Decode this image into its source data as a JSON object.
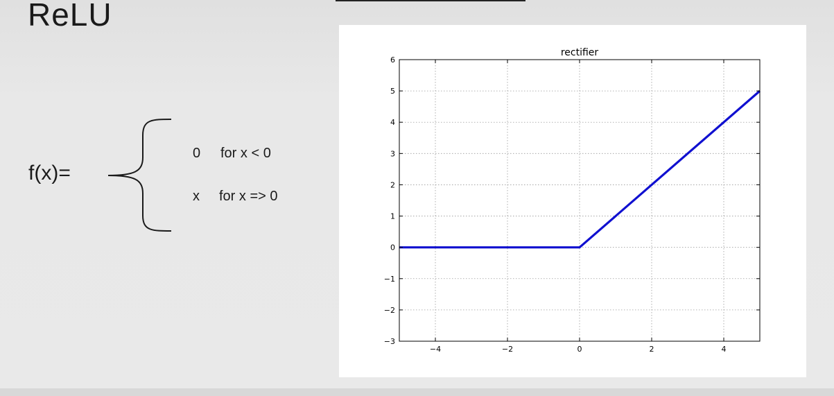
{
  "slide": {
    "title": "ReLU",
    "function_label": "f(x)=",
    "cases": [
      {
        "value": "0",
        "condition": "for x < 0"
      },
      {
        "value": "x",
        "condition": "for x => 0"
      }
    ]
  },
  "chart_data": {
    "type": "line",
    "title": "rectifier",
    "xlabel": "",
    "ylabel": "",
    "xlim": [
      -5,
      5
    ],
    "ylim": [
      -3,
      6
    ],
    "x_ticks": [
      -4,
      -2,
      0,
      2,
      4
    ],
    "y_ticks": [
      -3,
      -2,
      -1,
      0,
      1,
      2,
      3,
      4,
      5,
      6
    ],
    "x_tick_labels": [
      "−4",
      "−2",
      "0",
      "2",
      "4"
    ],
    "y_tick_labels": [
      "−3",
      "−2",
      "−1",
      "0",
      "1",
      "2",
      "3",
      "4",
      "5",
      "6"
    ],
    "grid": true,
    "series": [
      {
        "x": [
          -5,
          0,
          5
        ],
        "y": [
          0,
          0,
          5
        ],
        "color": "#1010d0"
      }
    ]
  }
}
